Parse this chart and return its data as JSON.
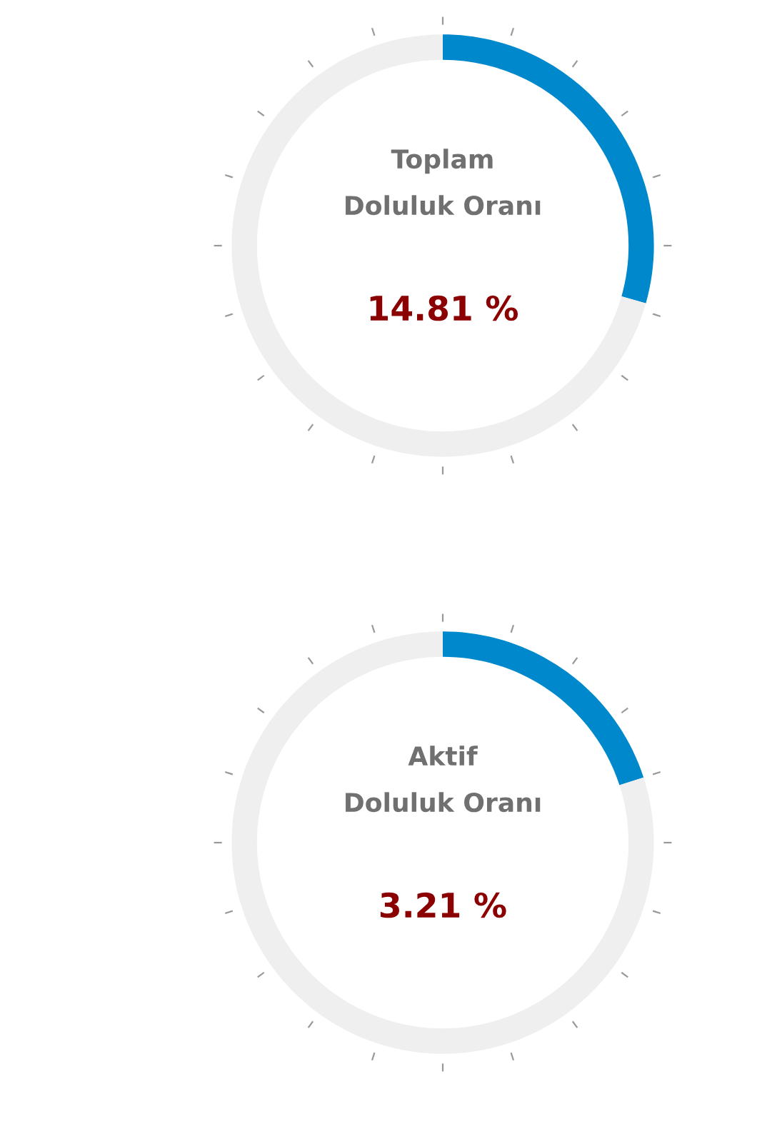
{
  "chart_data": [
    {
      "type": "donut",
      "title": "Toplam",
      "subtitle": "Doluluk Oranı",
      "categories": [
        null,
        null
      ],
      "values": [
        29.4,
        70.6
      ],
      "colors": [
        "#0088cc",
        "#efefef"
      ],
      "annotations": [
        "14.81 %"
      ]
    },
    {
      "type": "donut",
      "title": "Aktif",
      "subtitle": "Doluluk Oranı",
      "categories": [
        null,
        null
      ],
      "values": [
        20.0,
        80.0
      ],
      "colors": [
        "#0088cc",
        "#efefef"
      ],
      "annotations": [
        "3.21 %"
      ]
    }
  ]
}
